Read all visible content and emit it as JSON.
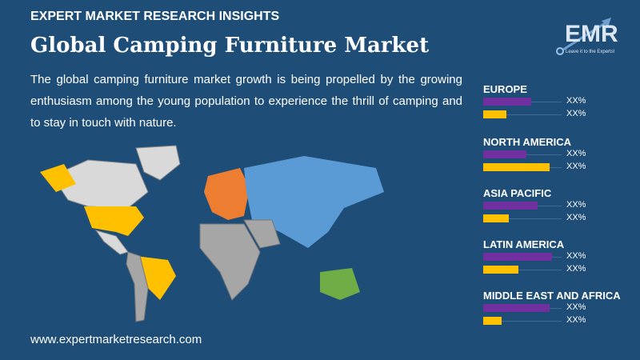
{
  "header": {
    "kicker": "EXPERT MARKET RESEARCH INSIGHTS",
    "title": "Global Camping Furniture Market",
    "description": "The global camping furniture market growth is being propelled by the growing enthusiasm among the young population to experience the thrill of camping and to stay in touch with nature."
  },
  "logo": {
    "text": "EMR",
    "tagline": "Leave it to the Experts!"
  },
  "footer": {
    "url": "www.expertmarketresearch.com"
  },
  "colors": {
    "background": "#1e4d78",
    "purple": "#7030a0",
    "yellow": "#ffc000",
    "north_america": "#ffc000",
    "europe": "#ed7d31",
    "asia": "#5b9bd5",
    "oceania": "#70ad47",
    "latin_america": "#ffc000",
    "other": "#d9d9d9"
  },
  "regions": [
    {
      "name": "EUROPE",
      "bars": [
        {
          "value": 61,
          "label": "XX%"
        },
        {
          "value": 30,
          "label": "XX%"
        }
      ]
    },
    {
      "name": "NORTH AMERICA",
      "bars": [
        {
          "value": 55,
          "label": "XX%"
        },
        {
          "value": 85,
          "label": "XX%"
        }
      ]
    },
    {
      "name": "ASIA PACIFIC",
      "bars": [
        {
          "value": 69,
          "label": "XX%"
        },
        {
          "value": 33,
          "label": "XX%"
        }
      ]
    },
    {
      "name": "LATIN AMERICA",
      "bars": [
        {
          "value": 88,
          "label": "XX%"
        },
        {
          "value": 45,
          "label": "XX%"
        }
      ]
    },
    {
      "name": "MIDDLE EAST AND AFRICA",
      "bars": [
        {
          "value": 85,
          "label": "XX%"
        },
        {
          "value": 23,
          "label": "XX%"
        }
      ]
    }
  ]
}
